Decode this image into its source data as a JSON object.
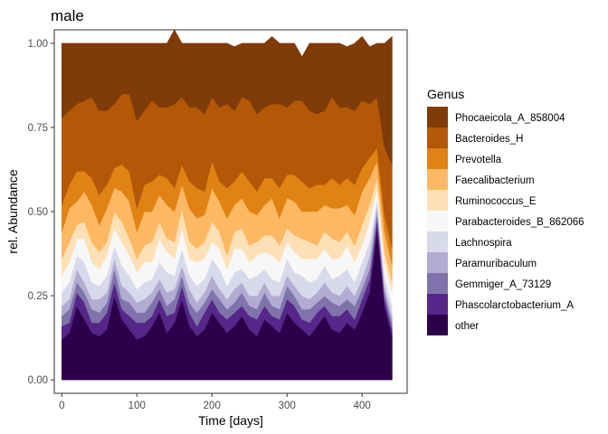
{
  "chart_data": {
    "type": "area",
    "subtype": "stacked-100-percent",
    "title": "male",
    "xlabel": "Time [days]",
    "ylabel": "rel. Abundance",
    "xlim": [
      -10,
      460
    ],
    "ylim": [
      -0.04,
      1.04
    ],
    "xticks": [
      0,
      100,
      200,
      300,
      400
    ],
    "yticks": [
      0.0,
      0.25,
      0.5,
      0.75,
      1.0
    ],
    "ytick_labels": [
      "0.00",
      "0.25",
      "0.50",
      "0.75",
      "1.00"
    ],
    "grid": false,
    "legend_position": "right",
    "legend_title": "Genus",
    "x": [
      0,
      10,
      20,
      30,
      40,
      50,
      60,
      70,
      80,
      90,
      100,
      110,
      120,
      130,
      140,
      150,
      160,
      170,
      180,
      190,
      200,
      210,
      220,
      230,
      240,
      250,
      260,
      270,
      280,
      290,
      300,
      310,
      320,
      330,
      340,
      350,
      360,
      370,
      380,
      390,
      400,
      410,
      420,
      430,
      440
    ],
    "series": [
      {
        "name": "other",
        "color": "#2d004b",
        "values": [
          0.12,
          0.14,
          0.22,
          0.18,
          0.14,
          0.13,
          0.15,
          0.25,
          0.18,
          0.15,
          0.12,
          0.13,
          0.16,
          0.2,
          0.14,
          0.17,
          0.24,
          0.16,
          0.13,
          0.15,
          0.2,
          0.17,
          0.14,
          0.16,
          0.19,
          0.15,
          0.13,
          0.18,
          0.16,
          0.14,
          0.2,
          0.17,
          0.15,
          0.13,
          0.16,
          0.19,
          0.15,
          0.14,
          0.17,
          0.15,
          0.2,
          0.26,
          0.45,
          0.22,
          0.13
        ]
      },
      {
        "name": "Phascolarctobacterium_A",
        "color": "#542788",
        "values": [
          0.04,
          0.03,
          0.04,
          0.05,
          0.03,
          0.04,
          0.05,
          0.04,
          0.03,
          0.04,
          0.05,
          0.04,
          0.03,
          0.04,
          0.05,
          0.03,
          0.04,
          0.04,
          0.03,
          0.05,
          0.04,
          0.03,
          0.04,
          0.04,
          0.03,
          0.04,
          0.05,
          0.04,
          0.03,
          0.04,
          0.04,
          0.05,
          0.03,
          0.04,
          0.04,
          0.03,
          0.04,
          0.05,
          0.04,
          0.03,
          0.04,
          0.04,
          0.03,
          0.02,
          0.02
        ]
      },
      {
        "name": "Gemmiger_A_73129",
        "color": "#8073ac",
        "values": [
          0.03,
          0.04,
          0.03,
          0.03,
          0.04,
          0.03,
          0.03,
          0.04,
          0.03,
          0.04,
          0.03,
          0.03,
          0.04,
          0.03,
          0.03,
          0.04,
          0.03,
          0.03,
          0.04,
          0.03,
          0.03,
          0.04,
          0.03,
          0.03,
          0.04,
          0.03,
          0.03,
          0.04,
          0.03,
          0.03,
          0.04,
          0.03,
          0.03,
          0.04,
          0.03,
          0.03,
          0.04,
          0.03,
          0.03,
          0.04,
          0.03,
          0.03,
          0.02,
          0.02,
          0.02
        ]
      },
      {
        "name": "Paramuribaculum",
        "color": "#b2abd2",
        "values": [
          0.03,
          0.03,
          0.04,
          0.03,
          0.03,
          0.04,
          0.03,
          0.03,
          0.04,
          0.03,
          0.03,
          0.04,
          0.03,
          0.03,
          0.04,
          0.03,
          0.03,
          0.04,
          0.03,
          0.03,
          0.04,
          0.03,
          0.03,
          0.04,
          0.03,
          0.03,
          0.04,
          0.03,
          0.03,
          0.04,
          0.03,
          0.03,
          0.04,
          0.03,
          0.03,
          0.04,
          0.03,
          0.03,
          0.04,
          0.03,
          0.03,
          0.04,
          0.02,
          0.02,
          0.02
        ]
      },
      {
        "name": "Lachnospira",
        "color": "#d8daeb",
        "values": [
          0.04,
          0.05,
          0.04,
          0.06,
          0.05,
          0.04,
          0.05,
          0.04,
          0.06,
          0.05,
          0.04,
          0.05,
          0.04,
          0.05,
          0.06,
          0.04,
          0.05,
          0.04,
          0.05,
          0.04,
          0.05,
          0.06,
          0.04,
          0.05,
          0.04,
          0.05,
          0.06,
          0.04,
          0.05,
          0.04,
          0.05,
          0.04,
          0.06,
          0.05,
          0.04,
          0.05,
          0.04,
          0.06,
          0.05,
          0.04,
          0.05,
          0.04,
          0.02,
          0.03,
          0.03
        ]
      },
      {
        "name": "Parabacteroides_B_862066",
        "color": "#f7f7f7",
        "values": [
          0.05,
          0.06,
          0.05,
          0.07,
          0.06,
          0.05,
          0.06,
          0.05,
          0.07,
          0.06,
          0.05,
          0.06,
          0.05,
          0.07,
          0.06,
          0.05,
          0.06,
          0.05,
          0.07,
          0.06,
          0.05,
          0.06,
          0.05,
          0.07,
          0.06,
          0.05,
          0.06,
          0.05,
          0.07,
          0.06,
          0.05,
          0.06,
          0.05,
          0.07,
          0.06,
          0.05,
          0.06,
          0.05,
          0.07,
          0.06,
          0.05,
          0.06,
          0.03,
          0.04,
          0.04
        ]
      },
      {
        "name": "Ruminococcus_E",
        "color": "#fee0b6",
        "values": [
          0.05,
          0.06,
          0.04,
          0.05,
          0.06,
          0.05,
          0.04,
          0.05,
          0.06,
          0.05,
          0.04,
          0.05,
          0.06,
          0.05,
          0.04,
          0.05,
          0.06,
          0.05,
          0.04,
          0.05,
          0.06,
          0.05,
          0.04,
          0.05,
          0.06,
          0.05,
          0.04,
          0.05,
          0.06,
          0.05,
          0.04,
          0.05,
          0.06,
          0.05,
          0.04,
          0.05,
          0.06,
          0.05,
          0.04,
          0.05,
          0.06,
          0.05,
          0.03,
          0.03,
          0.03
        ]
      },
      {
        "name": "Faecalibacterium",
        "color": "#fdb863",
        "values": [
          0.08,
          0.1,
          0.07,
          0.09,
          0.11,
          0.08,
          0.1,
          0.07,
          0.09,
          0.11,
          0.08,
          0.1,
          0.09,
          0.08,
          0.1,
          0.09,
          0.07,
          0.1,
          0.09,
          0.08,
          0.1,
          0.09,
          0.11,
          0.08,
          0.09,
          0.1,
          0.08,
          0.09,
          0.11,
          0.08,
          0.09,
          0.1,
          0.08,
          0.09,
          0.1,
          0.08,
          0.09,
          0.1,
          0.08,
          0.09,
          0.1,
          0.08,
          0.05,
          0.06,
          0.05
        ]
      },
      {
        "name": "Prevotella",
        "color": "#e08214",
        "values": [
          0.08,
          0.07,
          0.09,
          0.06,
          0.08,
          0.09,
          0.07,
          0.06,
          0.08,
          0.09,
          0.07,
          0.08,
          0.09,
          0.06,
          0.08,
          0.07,
          0.06,
          0.08,
          0.09,
          0.07,
          0.08,
          0.06,
          0.09,
          0.07,
          0.08,
          0.09,
          0.07,
          0.08,
          0.06,
          0.09,
          0.07,
          0.08,
          0.09,
          0.07,
          0.08,
          0.06,
          0.09,
          0.07,
          0.08,
          0.09,
          0.07,
          0.06,
          0.04,
          0.05,
          0.05
        ]
      },
      {
        "name": "Bacteroides_H",
        "color": "#b35806",
        "values": [
          0.26,
          0.22,
          0.2,
          0.21,
          0.24,
          0.25,
          0.22,
          0.19,
          0.21,
          0.23,
          0.26,
          0.22,
          0.24,
          0.2,
          0.21,
          0.25,
          0.2,
          0.22,
          0.24,
          0.23,
          0.19,
          0.22,
          0.25,
          0.21,
          0.22,
          0.24,
          0.23,
          0.21,
          0.22,
          0.25,
          0.2,
          0.22,
          0.24,
          0.23,
          0.21,
          0.22,
          0.24,
          0.23,
          0.21,
          0.22,
          0.2,
          0.16,
          0.15,
          0.2,
          0.25
        ]
      },
      {
        "name": "Phocaeicola_A_858004",
        "color": "#7f3b08",
        "values": [
          0.22,
          0.2,
          0.18,
          0.17,
          0.16,
          0.2,
          0.2,
          0.18,
          0.15,
          0.15,
          0.23,
          0.2,
          0.17,
          0.19,
          0.19,
          0.22,
          0.16,
          0.19,
          0.19,
          0.21,
          0.16,
          0.19,
          0.18,
          0.19,
          0.16,
          0.17,
          0.21,
          0.19,
          0.2,
          0.18,
          0.19,
          0.17,
          0.13,
          0.2,
          0.21,
          0.2,
          0.16,
          0.19,
          0.18,
          0.2,
          0.19,
          0.17,
          0.16,
          0.31,
          0.38
        ]
      }
    ]
  }
}
